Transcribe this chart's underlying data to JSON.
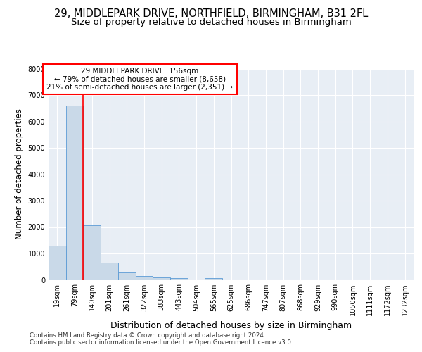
{
  "title1": "29, MIDDLEPARK DRIVE, NORTHFIELD, BIRMINGHAM, B31 2FL",
  "title2": "Size of property relative to detached houses in Birmingham",
  "xlabel": "Distribution of detached houses by size in Birmingham",
  "ylabel": "Number of detached properties",
  "bin_labels": [
    "19sqm",
    "79sqm",
    "140sqm",
    "201sqm",
    "261sqm",
    "322sqm",
    "383sqm",
    "443sqm",
    "504sqm",
    "565sqm",
    "625sqm",
    "686sqm",
    "747sqm",
    "807sqm",
    "868sqm",
    "929sqm",
    "990sqm",
    "1050sqm",
    "1111sqm",
    "1172sqm",
    "1232sqm"
  ],
  "bar_values": [
    1300,
    6600,
    2080,
    650,
    290,
    150,
    95,
    55,
    0,
    60,
    0,
    0,
    0,
    0,
    0,
    0,
    0,
    0,
    0,
    0,
    0
  ],
  "bar_color": "#c9d9e8",
  "bar_edge_color": "#5b9bd5",
  "vline_x": 2,
  "vline_color": "red",
  "annotation_text": "29 MIDDLEPARK DRIVE: 156sqm\n← 79% of detached houses are smaller (8,658)\n21% of semi-detached houses are larger (2,351) →",
  "annotation_box_color": "white",
  "annotation_box_edge_color": "red",
  "ylim": [
    0,
    8000
  ],
  "yticks": [
    0,
    1000,
    2000,
    3000,
    4000,
    5000,
    6000,
    7000,
    8000
  ],
  "plot_bg_color": "#e8eef5",
  "footer1": "Contains HM Land Registry data © Crown copyright and database right 2024.",
  "footer2": "Contains public sector information licensed under the Open Government Licence v3.0.",
  "title_fontsize": 10.5,
  "subtitle_fontsize": 9.5,
  "tick_fontsize": 7,
  "ylabel_fontsize": 8.5,
  "xlabel_fontsize": 9
}
